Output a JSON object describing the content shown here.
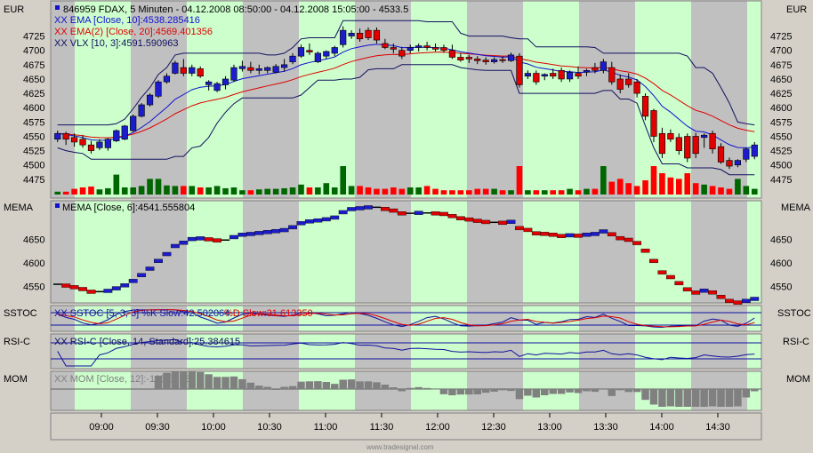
{
  "currency": "EUR",
  "watermark": "www.tradesignal.com",
  "colors": {
    "bg_green": "#ccffcc",
    "bg_gray": "#c0c0c0",
    "up": "#1c1ccc",
    "down": "#e00000",
    "vol_up": "#006600",
    "vol_down": "#ff0000",
    "ema": "#1010d0",
    "ema2": "#e00000",
    "vlx": "#101060"
  },
  "panels": {
    "price": {
      "header": "846959  FDAX, 5 Minuten - 04.12.2008 08:50:00 - 04.12.2008 15:05:00 - 4533.5",
      "legend": [
        "XX EMA [Close, 10]:4538.285416",
        "XX EMA(2) [Close, 20]:4569.401356",
        "XX VLX [10, 3]:4591.590963"
      ],
      "ticks": [
        "4725",
        "4700",
        "4675",
        "4650",
        "4625",
        "4600",
        "4575",
        "4550",
        "4525",
        "4500",
        "4475"
      ]
    },
    "mema": {
      "label": "MEMA",
      "legend": "MEMA [Close, 6]:4541.555804",
      "ticks": [
        "4650",
        "4600",
        "4550"
      ]
    },
    "sstoc": {
      "label": "SSTOC",
      "legend_k": "XX SSTOC [5, 3, 3] %K Slow:42.502064",
      "legend_d": "%D Slow:31.613350"
    },
    "rsi": {
      "label": "RSI-C",
      "legend": "XX RSI-C [Close, 14, Standard]:25.384615"
    },
    "mom": {
      "label": "MOM",
      "legend": "XX MOM [Close, 12]:-105.35987"
    }
  },
  "time_axis": [
    "09:00",
    "09:30",
    "10:00",
    "10:30",
    "11:00",
    "11:30",
    "12:00",
    "12:30",
    "13:00",
    "13:30",
    "14:00",
    "14:30"
  ],
  "chart_data": {
    "type": "candlestick",
    "ylim": [
      4450,
      4760
    ],
    "candles": [
      [
        4545,
        4560,
        4540,
        4555
      ],
      [
        4555,
        4558,
        4535,
        4545
      ],
      [
        4548,
        4555,
        4532,
        4540
      ],
      [
        4545,
        4552,
        4530,
        4535
      ],
      [
        4535,
        4542,
        4520,
        4525
      ],
      [
        4530,
        4545,
        4526,
        4540
      ],
      [
        4530,
        4547,
        4525,
        4545
      ],
      [
        4542,
        4562,
        4540,
        4560
      ],
      [
        4545,
        4570,
        4543,
        4568
      ],
      [
        4560,
        4588,
        4558,
        4585
      ],
      [
        4585,
        4608,
        4583,
        4605
      ],
      [
        4605,
        4625,
        4602,
        4622
      ],
      [
        4620,
        4648,
        4617,
        4645
      ],
      [
        4645,
        4660,
        4642,
        4655
      ],
      [
        4660,
        4682,
        4658,
        4678
      ],
      [
        4670,
        4685,
        4655,
        4660
      ],
      [
        4660,
        4675,
        4655,
        4670
      ],
      [
        4668,
        4672,
        4652,
        4655
      ],
      [
        4640,
        4648,
        4630,
        4645
      ],
      [
        4630,
        4645,
        4627,
        4642
      ],
      [
        4640,
        4655,
        4632,
        4650
      ],
      [
        4648,
        4675,
        4645,
        4670
      ],
      [
        4668,
        4682,
        4663,
        4672
      ],
      [
        4670,
        4680,
        4660,
        4665
      ],
      [
        4665,
        4675,
        4658,
        4668
      ],
      [
        4665,
        4672,
        4660,
        4670
      ],
      [
        4662,
        4676,
        4660,
        4672
      ],
      [
        4670,
        4685,
        4663,
        4675
      ],
      [
        4680,
        4695,
        4676,
        4690
      ],
      [
        4690,
        4710,
        4687,
        4705
      ],
      [
        4700,
        4712,
        4692,
        4697
      ],
      [
        4680,
        4698,
        4678,
        4695
      ],
      [
        4690,
        4700,
        4685,
        4698
      ],
      [
        4695,
        4708,
        4690,
        4705
      ],
      [
        4710,
        4742,
        4705,
        4735
      ],
      [
        4725,
        4735,
        4720,
        4730
      ],
      [
        4730,
        4738,
        4715,
        4720
      ],
      [
        4735,
        4740,
        4718,
        4722
      ],
      [
        4735,
        4740,
        4712,
        4718
      ],
      [
        4712,
        4720,
        4702,
        4705
      ],
      [
        4705,
        4712,
        4695,
        4702
      ],
      [
        4700,
        4706,
        4685,
        4690
      ],
      [
        4700,
        4710,
        4695,
        4705
      ],
      [
        4705,
        4712,
        4698,
        4708
      ],
      [
        4708,
        4715,
        4700,
        4705
      ],
      [
        4705,
        4712,
        4698,
        4702
      ],
      [
        4705,
        4710,
        4696,
        4700
      ],
      [
        4700,
        4710,
        4685,
        4688
      ],
      [
        4688,
        4695,
        4680,
        4683
      ],
      [
        4688,
        4692,
        4678,
        4685
      ],
      [
        4685,
        4690,
        4676,
        4682
      ],
      [
        4683,
        4688,
        4675,
        4680
      ],
      [
        4680,
        4688,
        4677,
        4684
      ],
      [
        4684,
        4690,
        4678,
        4682
      ],
      [
        4682,
        4696,
        4680,
        4692
      ],
      [
        4690,
        4695,
        4635,
        4640
      ],
      [
        4655,
        4665,
        4650,
        4660
      ],
      [
        4660,
        4665,
        4640,
        4645
      ],
      [
        4655,
        4660,
        4648,
        4658
      ],
      [
        4660,
        4668,
        4650,
        4655
      ],
      [
        4665,
        4670,
        4645,
        4650
      ],
      [
        4650,
        4665,
        4645,
        4662
      ],
      [
        4660,
        4672,
        4650,
        4655
      ],
      [
        4662,
        4668,
        4655,
        4665
      ],
      [
        4670,
        4678,
        4660,
        4665
      ],
      [
        4665,
        4685,
        4660,
        4680
      ],
      [
        4670,
        4680,
        4640,
        4645
      ],
      [
        4650,
        4658,
        4625,
        4632
      ],
      [
        4650,
        4660,
        4635,
        4640
      ],
      [
        4645,
        4650,
        4618,
        4625
      ],
      [
        4620,
        4625,
        4578,
        4585
      ],
      [
        4595,
        4598,
        4540,
        4550
      ],
      [
        4555,
        4565,
        4512,
        4520
      ],
      [
        4555,
        4562,
        4540,
        4545
      ],
      [
        4548,
        4555,
        4518,
        4525
      ],
      [
        4550,
        4555,
        4505,
        4512
      ],
      [
        4550,
        4556,
        4512,
        4520
      ],
      [
        4548,
        4555,
        4530,
        4552
      ],
      [
        4555,
        4560,
        4520,
        4528
      ],
      [
        4532,
        4538,
        4502,
        4505
      ],
      [
        4508,
        4513,
        4493,
        4498
      ],
      [
        4500,
        4510,
        4496,
        4508
      ],
      [
        4510,
        4530,
        4505,
        4528
      ],
      [
        4515,
        4540,
        4510,
        4535
      ]
    ],
    "volume": [
      0.1,
      0.1,
      0.2,
      0.25,
      0.28,
      0.18,
      0.22,
      0.7,
      0.25,
      0.25,
      0.3,
      0.55,
      0.55,
      0.32,
      0.3,
      0.3,
      0.3,
      0.25,
      0.25,
      0.3,
      0.22,
      0.25,
      0.15,
      0.15,
      0.18,
      0.2,
      0.2,
      0.22,
      0.25,
      0.35,
      0.25,
      0.25,
      0.4,
      0.25,
      1.0,
      0.3,
      0.3,
      0.25,
      0.2,
      0.2,
      0.25,
      0.2,
      0.25,
      0.25,
      0.3,
      0.2,
      0.15,
      0.15,
      0.15,
      0.15,
      0.2,
      0.2,
      0.2,
      0.15,
      0.15,
      1.0,
      0.15,
      0.15,
      0.15,
      0.15,
      0.15,
      0.2,
      0.15,
      0.2,
      0.2,
      1.0,
      0.45,
      0.55,
      0.4,
      0.3,
      0.5,
      1.0,
      0.75,
      0.6,
      0.55,
      0.75,
      0.4,
      0.35,
      0.3,
      0.25,
      0.2,
      0.55,
      0.3,
      0.2
    ]
  }
}
